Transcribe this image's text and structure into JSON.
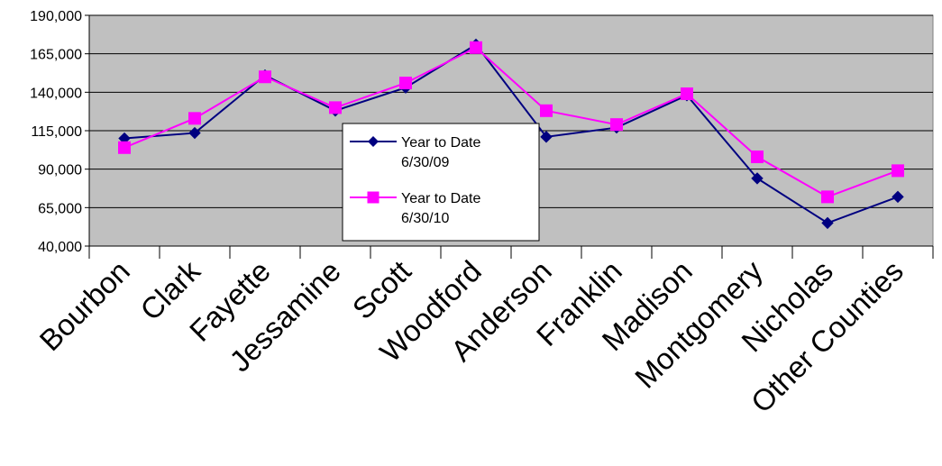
{
  "chart_data": {
    "type": "line",
    "categories": [
      "Bourbon",
      "Clark",
      "Fayette",
      "Jessamine",
      "Scott",
      "Woodford",
      "Anderson",
      "Franklin",
      "Madison",
      "Montgomery",
      "Nicholas",
      "Other Counties"
    ],
    "series": [
      {
        "name": "Year to Date 6/30/09",
        "legend_lines": [
          "Year to Date",
          "6/30/09"
        ],
        "color": "#000080",
        "marker": "diamond",
        "values": [
          110000,
          113500,
          151000,
          128000,
          143000,
          171000,
          111000,
          117000,
          138000,
          84000,
          55000,
          72000
        ]
      },
      {
        "name": "Year to Date 6/30/10",
        "legend_lines": [
          "Year to Date",
          "6/30/10"
        ],
        "color": "#FF00FF",
        "marker": "square",
        "values": [
          104000,
          123000,
          150000,
          130000,
          146000,
          169000,
          128000,
          119000,
          139000,
          98000,
          72000,
          89000
        ]
      }
    ],
    "ylim": [
      40000,
      190000
    ],
    "yticks": [
      40000,
      65000,
      90000,
      115000,
      140000,
      165000,
      190000
    ],
    "ytick_labels": [
      "40,000",
      "65,000",
      "90,000",
      "115,000",
      "140,000",
      "165,000",
      "190,000"
    ],
    "grid": true,
    "plot_background": "#C0C0C0",
    "legend_position": "center"
  }
}
